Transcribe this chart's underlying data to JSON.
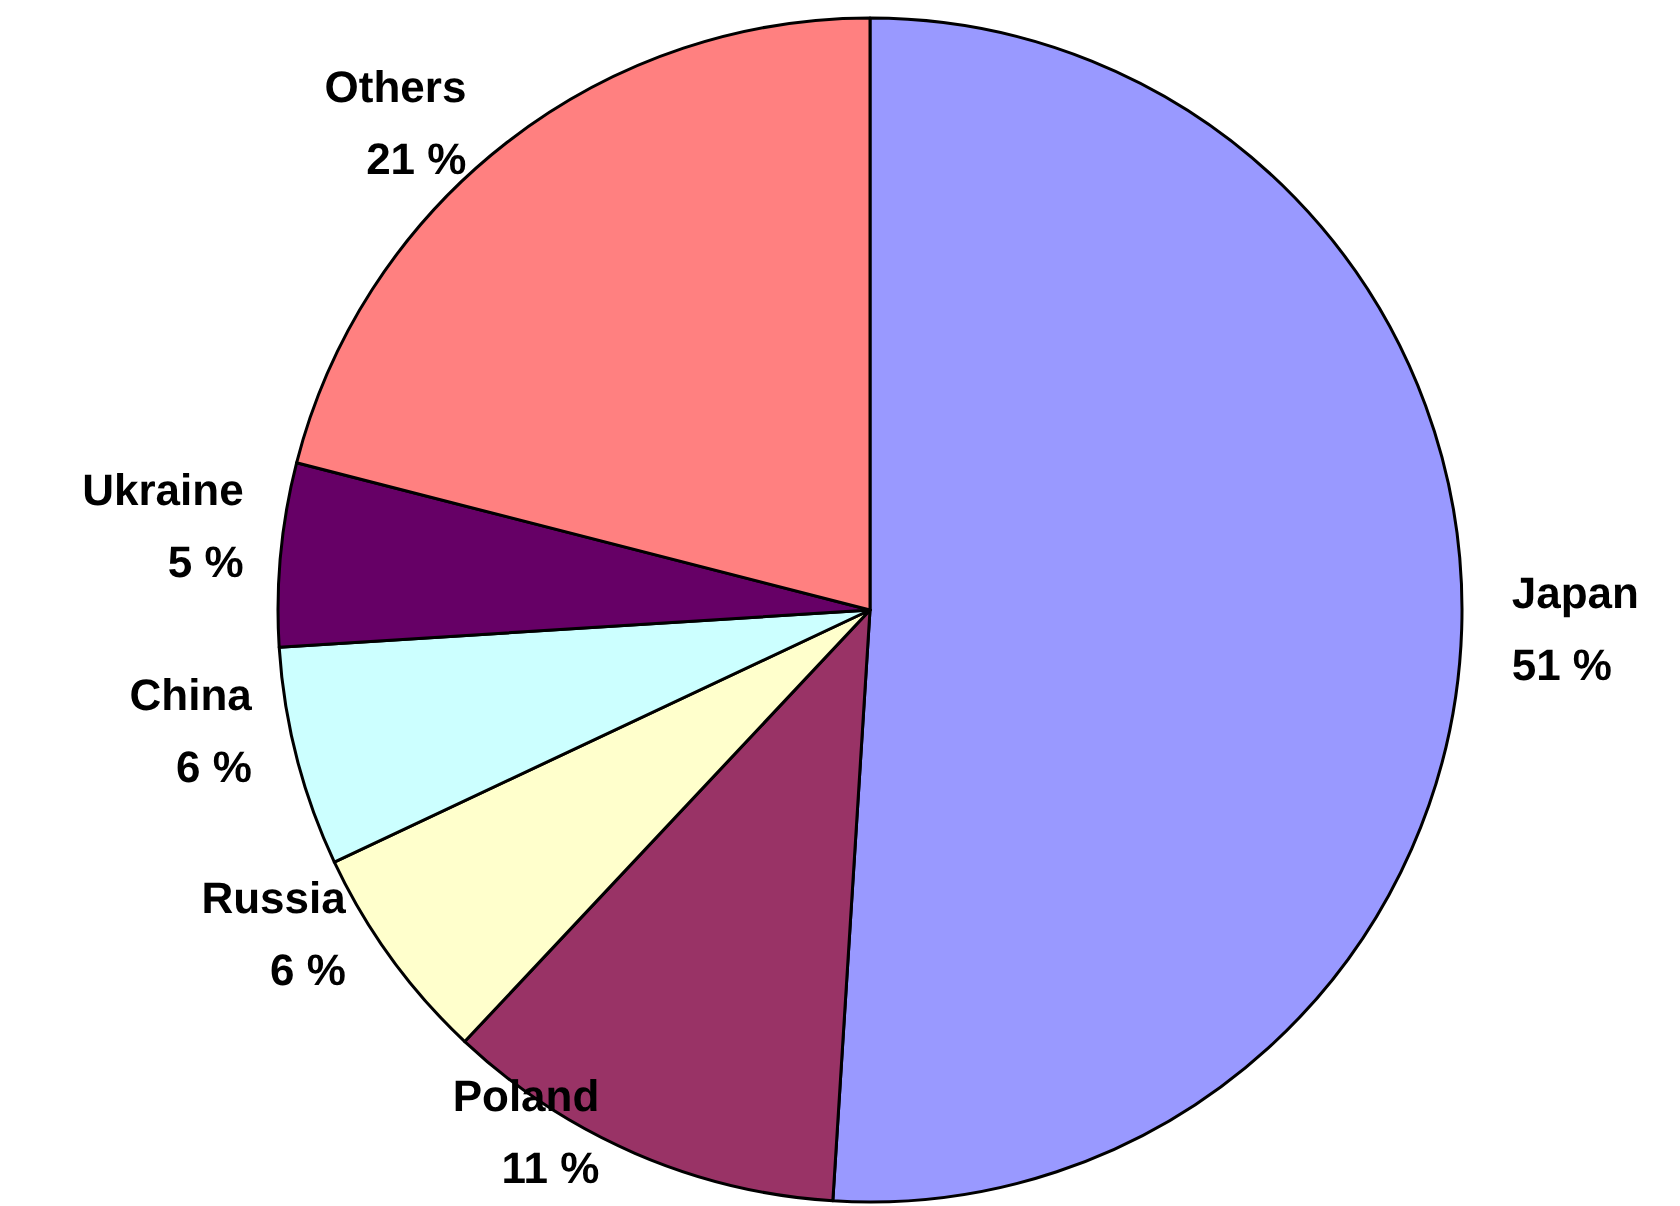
{
  "chart_data": {
    "type": "pie",
    "categories": [
      "Japan",
      "Poland",
      "Russia",
      "China",
      "Ukraine",
      "Others"
    ],
    "values": [
      51,
      11,
      6,
      6,
      5,
      21
    ],
    "value_labels": [
      "51 %",
      "11 %",
      "6 %",
      "6 %",
      "5 %",
      "21 %"
    ],
    "colors": [
      "#9999ff",
      "#993366",
      "#ffffcc",
      "#ccffff",
      "#660066",
      "#ff8080"
    ],
    "legend": false
  }
}
